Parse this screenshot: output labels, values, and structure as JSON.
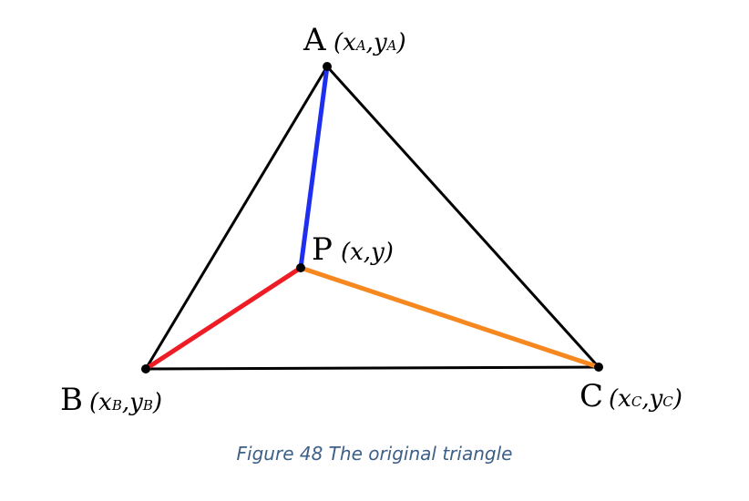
{
  "caption": "Figure 48 The original triangle",
  "vertices": {
    "A": {
      "name": "A",
      "x": "x",
      "y": "y",
      "sub": "A"
    },
    "B": {
      "name": "B",
      "x": "x",
      "y": "y",
      "sub": "B"
    },
    "C": {
      "name": "C",
      "x": "x",
      "y": "y",
      "sub": "C"
    },
    "P": {
      "name": "P",
      "coord": "(x,y)"
    }
  },
  "colors": {
    "triangle": "#000000",
    "PA": "#1e2ff0",
    "PB": "#ee1c24",
    "PC": "#f7871f"
  }
}
